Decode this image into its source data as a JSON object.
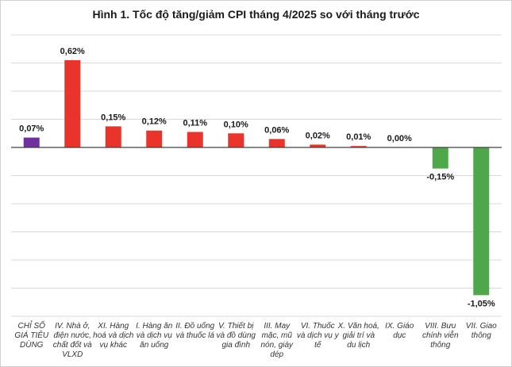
{
  "chart_data": {
    "type": "bar",
    "title": "Hình 1. Tốc độ tăng/giảm CPI tháng 4/2025 so với tháng trước",
    "xlabel": "",
    "ylabel": "",
    "ylim": [
      -1.2,
      0.8
    ],
    "grid": true,
    "legend": "none",
    "categories": [
      "CHỈ SỐ GIÁ TIÊU DÙNG",
      "IV. Nhà ở, điện nước, chất đốt và VLXD",
      "XI. Hàng hoá và dịch vụ khác",
      "I. Hàng ăn và dịch vụ ăn uống",
      "II. Đồ uống và thuốc lá",
      "V. Thiết bị và đồ dùng gia đình",
      "III. May mặc, mũ nón, giày dép",
      "VI. Thuốc và dịch vụ y tế",
      "X. Văn hoá, giải trí và du lịch",
      "IX. Giáo dục",
      "VIII. Bưu chính viễn thông",
      "VII. Giao thông"
    ],
    "category_lines": [
      [
        "CHỈ SỐ",
        "GIÁ TIÊU",
        "DÙNG"
      ],
      [
        "IV. Nhà ở,",
        "điện nước,",
        "chất đốt và",
        "VLXD"
      ],
      [
        "XI. Hàng",
        "hoá và dịch",
        "vụ khác"
      ],
      [
        "I. Hàng ăn",
        "và dịch vụ",
        "ăn uống"
      ],
      [
        "II. Đồ uống",
        "và thuốc lá"
      ],
      [
        "V. Thiết bị",
        "và đồ dùng",
        "gia đình"
      ],
      [
        "III. May",
        "mặc, mũ",
        "nón, giày",
        "dép"
      ],
      [
        "VI. Thuốc",
        "và dịch vụ y",
        "tế"
      ],
      [
        "X. Văn hoá,",
        "giải trí và",
        "du lịch"
      ],
      [
        "IX. Giáo",
        "dục"
      ],
      [
        "VIII. Bưu",
        "chính viễn",
        "thông"
      ],
      [
        "VII. Giao",
        "thông"
      ]
    ],
    "values": [
      0.07,
      0.62,
      0.15,
      0.12,
      0.11,
      0.1,
      0.06,
      0.02,
      0.01,
      0.0,
      -0.15,
      -1.05
    ],
    "data_labels": [
      "0,07%",
      "0,62%",
      "0,15%",
      "0,12%",
      "0,11%",
      "0,10%",
      "0,06%",
      "0,02%",
      "0,01%",
      "0,00%",
      "-0,15%",
      "-1,05%"
    ],
    "colors": {
      "overall": "#7030a0",
      "increase": "#e8342a",
      "decrease": "#4ea84a",
      "grid": "#d9d9d9",
      "axis": "#404040"
    }
  }
}
